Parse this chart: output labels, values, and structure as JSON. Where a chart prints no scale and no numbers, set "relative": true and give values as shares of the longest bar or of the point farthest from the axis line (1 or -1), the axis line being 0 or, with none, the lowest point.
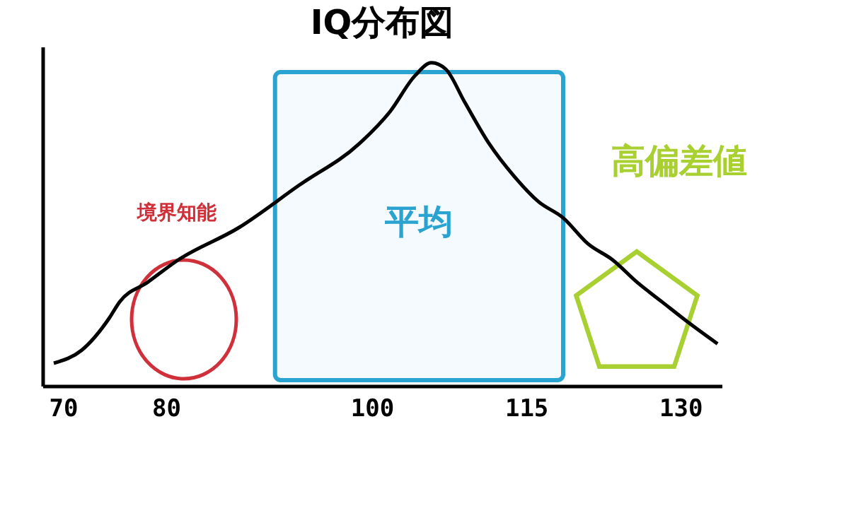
{
  "chart_data": {
    "type": "line",
    "title": "IQ分布図",
    "relative": true,
    "x": [
      69.1,
      71.8,
      74.5,
      75.5,
      78.2,
      81.2,
      87.1,
      92.9,
      98.8,
      101.8,
      104.2,
      105.8,
      107.2,
      109,
      111.4,
      113.8,
      116.2,
      118.6,
      121,
      123.4,
      125.8,
      128.2,
      130.6,
      133.6
    ],
    "series": [
      {
        "color": "#000000",
        "values": [
          0.07,
          0.11,
          0.21,
          0.26,
          0.32,
          0.39,
          0.49,
          0.62,
          0.75,
          0.85,
          0.96,
          1.0,
          0.98,
          0.88,
          0.75,
          0.65,
          0.57,
          0.52,
          0.44,
          0.39,
          0.32,
          0.26,
          0.2,
          0.13
        ]
      }
    ],
    "xlim": [
      68,
      134
    ],
    "xticks": [
      70,
      80,
      100,
      115,
      130
    ],
    "bands": [
      {
        "axis": "x",
        "from": 90.6,
        "to": 118.6,
        "label": "平均",
        "color": "#2aa3d0"
      }
    ],
    "annotations": [
      "境界知能",
      "高偏差値"
    ],
    "grid": false,
    "line_style": "solid",
    "marker": "none"
  }
}
